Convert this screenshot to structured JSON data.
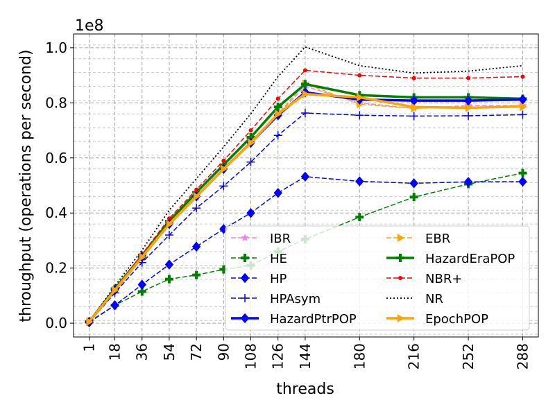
{
  "chart_data": {
    "type": "line",
    "title": "",
    "xlabel": "threads",
    "ylabel": "throughput (operations per second)",
    "offset_label": "1e8",
    "x": [
      1,
      18,
      36,
      54,
      72,
      90,
      108,
      126,
      144,
      180,
      216,
      252,
      288
    ],
    "x_tick_labels": [
      "1",
      "18",
      "36",
      "54",
      "72",
      "90",
      "108",
      "126",
      "144",
      "180",
      "216",
      "252",
      "288"
    ],
    "y_tick_labels": [
      "0.0",
      "0.2",
      "0.4",
      "0.6",
      "0.8",
      "1.0"
    ],
    "ylim": [
      -0.05,
      1.05
    ],
    "y_scale": 100000000,
    "grid": true,
    "legend_position": "lower-right",
    "series": [
      {
        "name": "IBR",
        "color": "#ee82ee",
        "dash": "dashed",
        "marker": "star",
        "width": 1.5,
        "values": [
          0.005,
          0.12,
          0.24,
          0.36,
          0.46,
          0.56,
          0.66,
          0.76,
          0.86,
          0.8,
          0.78,
          0.79,
          0.79
        ]
      },
      {
        "name": "EBR",
        "color": "#ffa500",
        "dash": "dashed",
        "marker": "triangle-right",
        "width": 1.5,
        "values": [
          0.005,
          0.12,
          0.24,
          0.36,
          0.46,
          0.56,
          0.66,
          0.76,
          0.87,
          0.795,
          0.78,
          0.785,
          0.785
        ]
      },
      {
        "name": "HE",
        "color": "#008000",
        "dash": "dashed",
        "marker": "plus",
        "width": 1.5,
        "values": [
          0.005,
          0.065,
          0.115,
          0.16,
          0.175,
          0.195,
          0.21,
          0.26,
          0.305,
          0.385,
          0.458,
          0.505,
          0.545
        ]
      },
      {
        "name": "HazardEraPOP",
        "color": "#008000",
        "dash": "solid",
        "marker": "plus",
        "width": 3.5,
        "values": [
          0.005,
          0.125,
          0.245,
          0.37,
          0.475,
          0.575,
          0.675,
          0.785,
          0.868,
          0.828,
          0.82,
          0.82,
          0.815
        ]
      },
      {
        "name": "HP",
        "color": "#0000ff",
        "dash": "dashed",
        "marker": "diamond",
        "width": 1.5,
        "values": [
          0.003,
          0.065,
          0.14,
          0.213,
          0.278,
          0.342,
          0.4,
          0.473,
          0.532,
          0.515,
          0.508,
          0.513,
          0.514
        ]
      },
      {
        "name": "NBR+",
        "color": "#ff0000",
        "dash": "dashed",
        "marker": "dot",
        "width": 1.5,
        "values": [
          0.005,
          0.125,
          0.25,
          0.38,
          0.485,
          0.59,
          0.7,
          0.815,
          0.918,
          0.9,
          0.89,
          0.89,
          0.895
        ]
      },
      {
        "name": "HPAsym",
        "color": "#0000ff",
        "dash": "dashed",
        "marker": "plus-thin",
        "width": 1.5,
        "values": [
          0.003,
          0.11,
          0.22,
          0.32,
          0.418,
          0.498,
          0.585,
          0.682,
          0.763,
          0.755,
          0.752,
          0.753,
          0.757
        ]
      },
      {
        "name": "NR",
        "color": "#000000",
        "dash": "dotted",
        "marker": "none",
        "width": 1.8,
        "values": [
          0.005,
          0.135,
          0.265,
          0.41,
          0.525,
          0.64,
          0.76,
          0.895,
          1.003,
          0.935,
          0.908,
          0.915,
          0.935
        ]
      },
      {
        "name": "HazardPtrPOP",
        "color": "#0000ff",
        "dash": "solid",
        "marker": "diamond",
        "width": 3.5,
        "values": [
          0.005,
          0.12,
          0.24,
          0.36,
          0.46,
          0.56,
          0.655,
          0.755,
          0.838,
          0.812,
          0.808,
          0.808,
          0.812
        ]
      },
      {
        "name": "EpochPOP",
        "color": "#ffa500",
        "dash": "solid",
        "marker": "triangle-right",
        "width": 3.5,
        "values": [
          0.005,
          0.12,
          0.24,
          0.36,
          0.46,
          0.56,
          0.655,
          0.76,
          0.832,
          0.82,
          0.785,
          0.782,
          0.787
        ]
      }
    ]
  }
}
